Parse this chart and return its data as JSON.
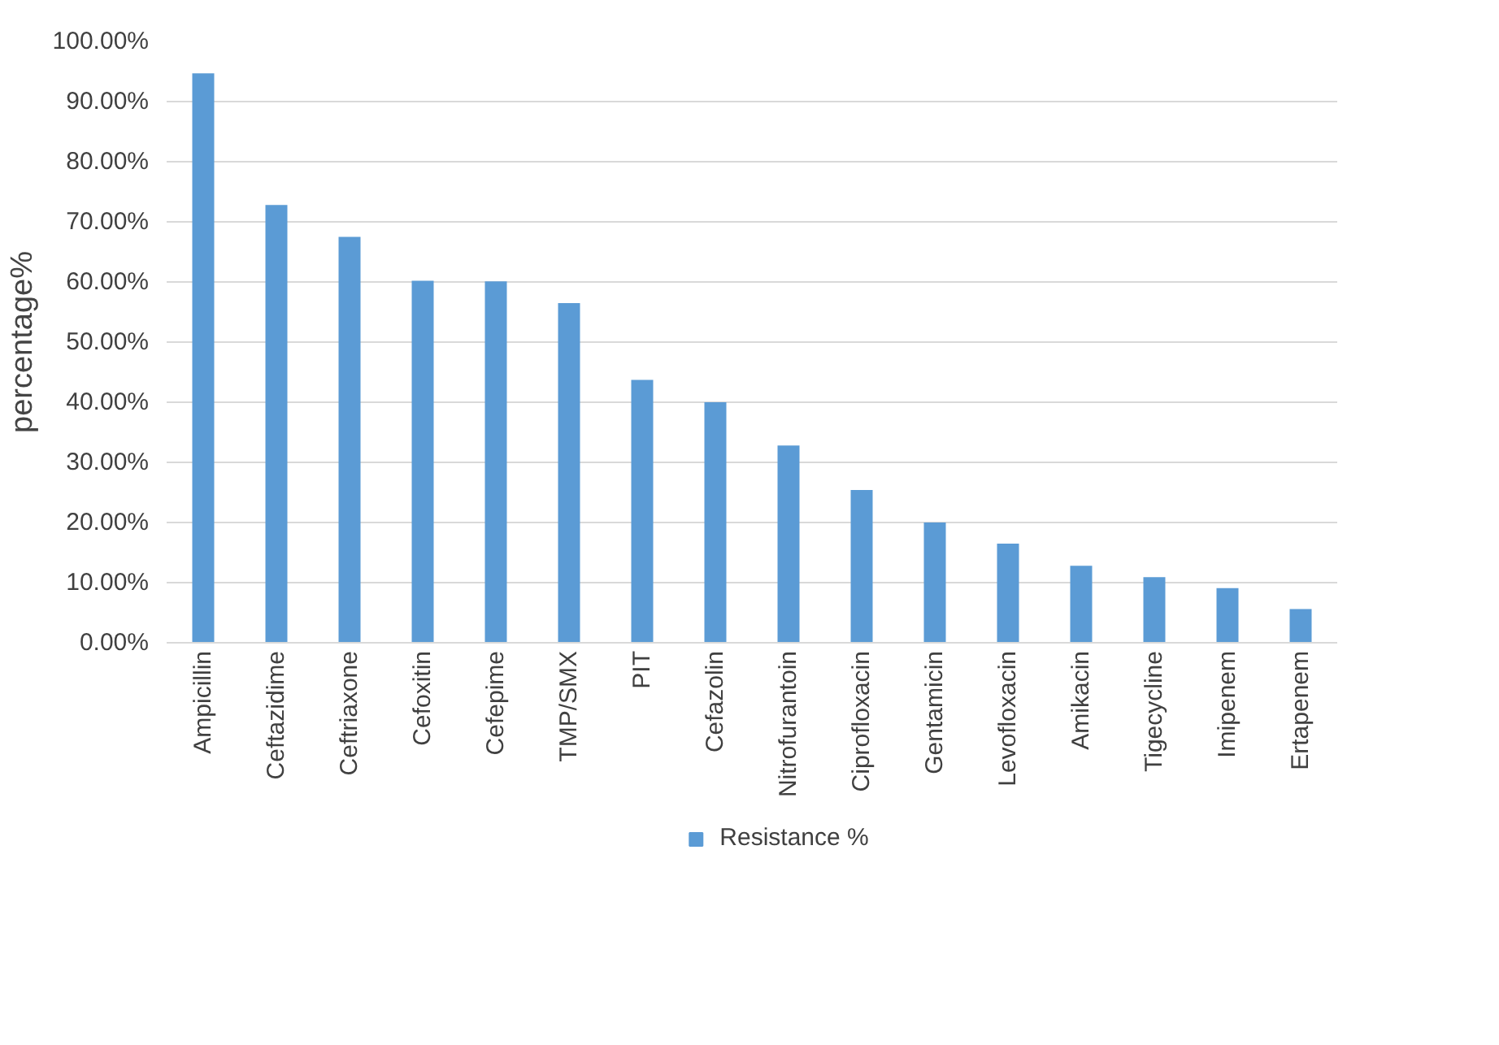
{
  "chart_data": {
    "type": "bar",
    "ylabel": "percentage%",
    "categories": [
      "Ampicillin",
      "Ceftazidime",
      "Ceftriaxone",
      "Cefoxitin",
      "Cefepime",
      "TMP/SMX",
      "PIT",
      "Cefazolin",
      "Nitrofurantoin",
      "Ciprofloxacin",
      "Gentamicin",
      "Levofloxacin",
      "Amikacin",
      "Tigecycline",
      "Imipenem",
      "Ertapenem"
    ],
    "series": [
      {
        "name": "Resistance %",
        "color": "#5b9bd5",
        "values": [
          94.7,
          72.8,
          67.5,
          60.2,
          60.1,
          56.5,
          43.7,
          40.0,
          32.8,
          25.4,
          20.0,
          16.5,
          12.8,
          10.9,
          9.1,
          5.6
        ]
      }
    ],
    "ylim": [
      0,
      100
    ],
    "yticks": [
      {
        "value": 0,
        "label": "0.00%"
      },
      {
        "value": 10,
        "label": "10.00%"
      },
      {
        "value": 20,
        "label": "20.00%"
      },
      {
        "value": 30,
        "label": "30.00%"
      },
      {
        "value": 40,
        "label": "40.00%"
      },
      {
        "value": 50,
        "label": "50.00%"
      },
      {
        "value": 60,
        "label": "60.00%"
      },
      {
        "value": 70,
        "label": "70.00%"
      },
      {
        "value": 80,
        "label": "80.00%"
      },
      {
        "value": 90,
        "label": "90.00%"
      },
      {
        "value": 100,
        "label": "100.00%"
      }
    ],
    "grid": "y",
    "legend": "bottom"
  }
}
